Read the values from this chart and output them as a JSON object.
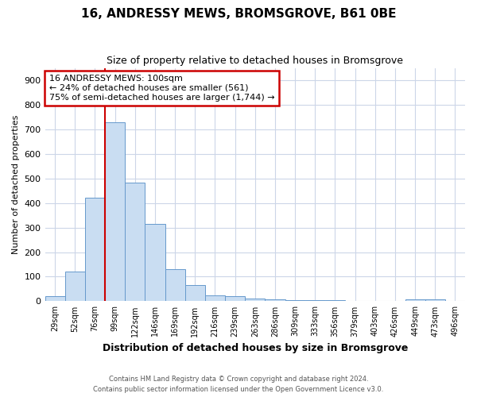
{
  "title": "16, ANDRESSY MEWS, BROMSGROVE, B61 0BE",
  "subtitle": "Size of property relative to detached houses in Bromsgrove",
  "xlabel": "Distribution of detached houses by size in Bromsgrove",
  "ylabel": "Number of detached properties",
  "footnote1": "Contains HM Land Registry data © Crown copyright and database right 2024.",
  "footnote2": "Contains public sector information licensed under the Open Government Licence v3.0.",
  "categories": [
    "29sqm",
    "52sqm",
    "76sqm",
    "99sqm",
    "122sqm",
    "146sqm",
    "169sqm",
    "192sqm",
    "216sqm",
    "239sqm",
    "263sqm",
    "286sqm",
    "309sqm",
    "333sqm",
    "356sqm",
    "379sqm",
    "403sqm",
    "426sqm",
    "449sqm",
    "473sqm",
    "496sqm"
  ],
  "values": [
    21,
    122,
    421,
    730,
    484,
    316,
    131,
    65,
    25,
    22,
    12,
    9,
    5,
    5,
    6,
    0,
    0,
    0,
    8,
    9,
    0
  ],
  "bar_color": "#c9ddf2",
  "bar_edge_color": "#6699cc",
  "red_line_x": 2.5,
  "annotation_title": "16 ANDRESSY MEWS: 100sqm",
  "annotation_line1": "← 24% of detached houses are smaller (561)",
  "annotation_line2": "75% of semi-detached houses are larger (1,744) →",
  "annotation_box_color": "#cc0000",
  "ylim": [
    0,
    950
  ],
  "yticks": [
    0,
    100,
    200,
    300,
    400,
    500,
    600,
    700,
    800,
    900
  ],
  "bg_color": "#ffffff",
  "grid_color": "#ccd6e8"
}
